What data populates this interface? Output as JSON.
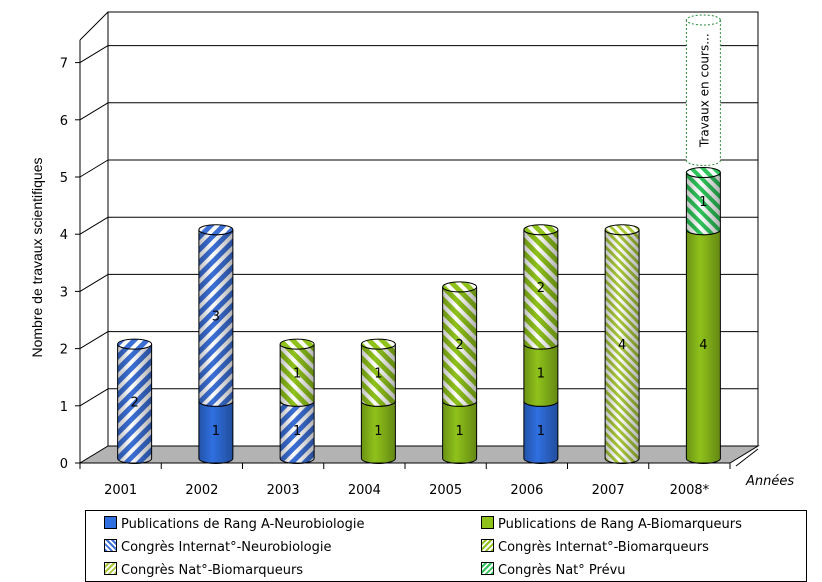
{
  "chart_data": {
    "type": "bar",
    "stacked": true,
    "categories": [
      "2001",
      "2002",
      "2003",
      "2004",
      "2005",
      "2006",
      "2007",
      "2008*"
    ],
    "ylabel": "Nombre de travaux scientifiques",
    "xlabel": "Années",
    "ylim": [
      0,
      7.5
    ],
    "yticks": [
      "0",
      "1",
      "2",
      "3",
      "4",
      "5",
      "6",
      "7"
    ],
    "grid": true,
    "legend_position": "bottom",
    "series": [
      {
        "name": "Publications de Rang A-Neurobiologie",
        "values": [
          0,
          1,
          0,
          0,
          0,
          1,
          0,
          0
        ],
        "color": "#2f6fe0",
        "pattern": "solid"
      },
      {
        "name": "Publications de Rang A-Biomarqueurs",
        "values": [
          0,
          0,
          0,
          1,
          1,
          1,
          0,
          4
        ],
        "color": "#8fc21b",
        "pattern": "solid"
      },
      {
        "name": "Congrès Internat°-Neurobiologie",
        "values": [
          2,
          3,
          1,
          0,
          0,
          0,
          0,
          0
        ],
        "color": "#3b6fd6",
        "pattern": "diag-blue"
      },
      {
        "name": "Congrès Internat°-Biomarqueurs",
        "values": [
          0,
          0,
          1,
          1,
          2,
          2,
          0,
          0
        ],
        "color": "#8fc21b",
        "pattern": "diag-green"
      },
      {
        "name": "Congrès Nat°-Biomarqueurs",
        "values": [
          0,
          0,
          0,
          0,
          0,
          0,
          4,
          0
        ],
        "color": "#a8c83a",
        "pattern": "diag-green-fine"
      },
      {
        "name": "Congrès Nat° Prévu",
        "values": [
          0,
          0,
          0,
          0,
          0,
          0,
          0,
          1
        ],
        "color": "#2ec45a",
        "pattern": "diag-bright"
      }
    ],
    "annotations": [
      {
        "category": "2008*",
        "text": "Travaux en cours..."
      }
    ]
  }
}
